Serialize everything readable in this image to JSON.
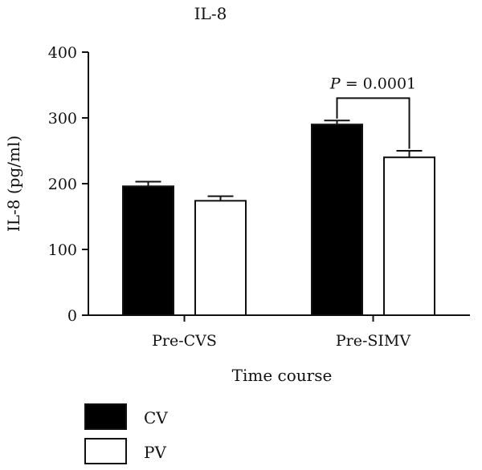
{
  "chart_data": {
    "type": "bar",
    "title": "IL-8",
    "xlabel": "Time course",
    "ylabel": "IL-8 (pg/ml)",
    "categories": [
      "Pre-CVS",
      "Pre-SIMV"
    ],
    "series": [
      {
        "name": "CV",
        "values": [
          196,
          290
        ],
        "error": [
          7,
          6
        ],
        "color": "#000000"
      },
      {
        "name": "PV",
        "values": [
          174,
          240
        ],
        "error": [
          7,
          10
        ],
        "color": "#ffffff"
      }
    ],
    "ylim": [
      0,
      400
    ],
    "yticks": [
      0,
      100,
      200,
      300,
      400
    ],
    "grid": false,
    "legend": {
      "position": "bottom-left"
    },
    "annotations": [
      {
        "category": "Pre-SIMV",
        "text_label": "P",
        "text_value": " = 0.0001"
      }
    ]
  }
}
